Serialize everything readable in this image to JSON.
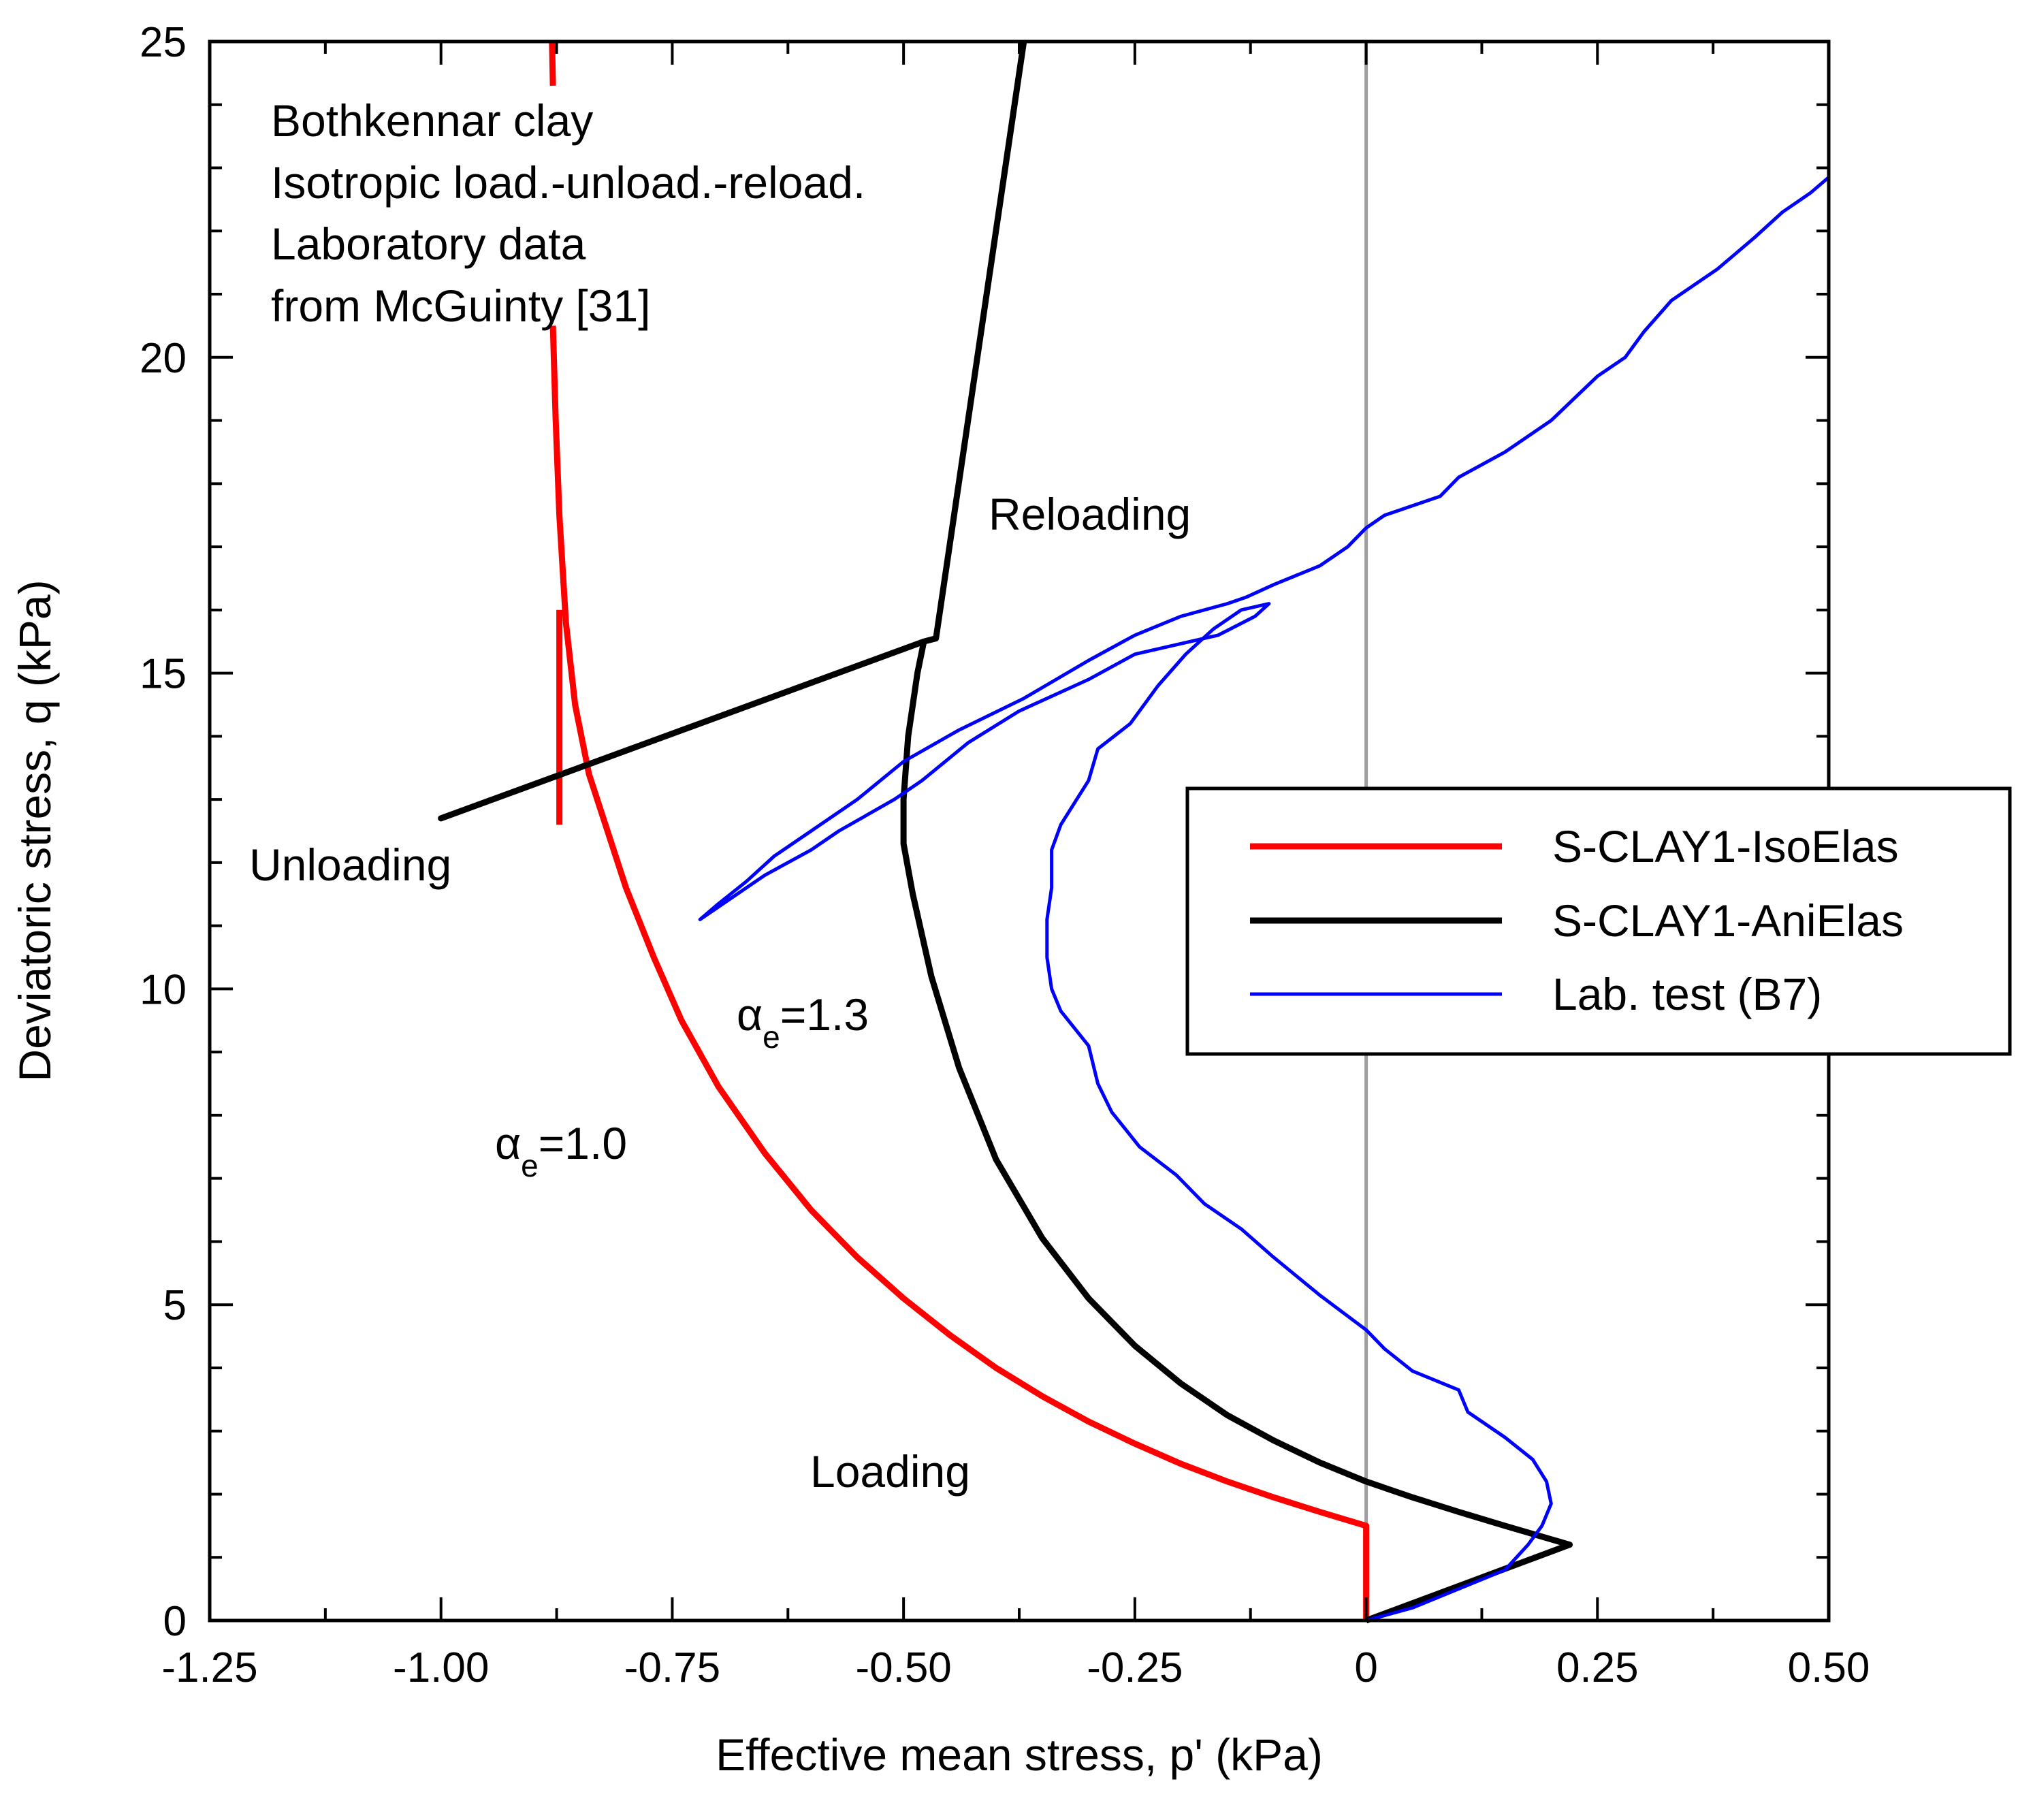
{
  "colors": {
    "red": "#ff0000",
    "black": "#000000",
    "blue": "#0000ff",
    "zero_line": "#a0a0a0"
  },
  "chart_data": {
    "type": "line",
    "xlabel": "Effective mean stress, p' (kPa)",
    "ylabel": "Deviatoric stress, q (kPa)",
    "xlim": [
      -1.25,
      0.5
    ],
    "ylim": [
      0,
      25
    ],
    "x_ticks": [
      -1.25,
      -1.0,
      -0.75,
      -0.5,
      -0.25,
      0,
      0.25,
      0.5
    ],
    "x_tick_labels": [
      "-1.25",
      "-1.00",
      "-0.75",
      "-0.50",
      "-0.25",
      "0",
      "0.25",
      "0.50"
    ],
    "y_ticks": [
      0,
      5,
      10,
      15,
      20,
      25
    ],
    "y_tick_labels": [
      "0",
      "5",
      "10",
      "15",
      "20",
      "25"
    ],
    "info_lines": [
      "Bothkennar clay",
      "Isotropic load.-unload.-reload.",
      "Laboratory data",
      "from McGuinty [31]"
    ],
    "annotations": {
      "unloading": "Unloading",
      "reloading": "Reloading",
      "loading": "Loading",
      "alpha_symbol": "α",
      "alpha_sub": "e",
      "alpha_red_value": "=1.0",
      "alpha_black_value": "=1.3"
    },
    "legend": {
      "position": "middle-right",
      "entries": [
        "S-CLAY1-IsoElas",
        "S-CLAY1-AniElas",
        "Lab. test (B7)"
      ]
    },
    "series": [
      {
        "name": "S-CLAY1-IsoElas",
        "color": "red",
        "points": [
          [
            0,
            0
          ],
          [
            0,
            1.5
          ],
          [
            -0.05,
            1.72
          ],
          [
            -0.1,
            1.95
          ],
          [
            -0.15,
            2.2
          ],
          [
            -0.2,
            2.48
          ],
          [
            -0.25,
            2.8
          ],
          [
            -0.3,
            3.15
          ],
          [
            -0.35,
            3.55
          ],
          [
            -0.4,
            4.0
          ],
          [
            -0.45,
            4.52
          ],
          [
            -0.5,
            5.1
          ],
          [
            -0.55,
            5.75
          ],
          [
            -0.6,
            6.5
          ],
          [
            -0.65,
            7.4
          ],
          [
            -0.7,
            8.45
          ],
          [
            -0.74,
            9.5
          ],
          [
            -0.77,
            10.5
          ],
          [
            -0.8,
            11.6
          ],
          [
            -0.82,
            12.5
          ],
          [
            -0.84,
            13.4
          ],
          [
            -0.855,
            14.5
          ],
          [
            -0.865,
            15.8
          ],
          [
            -0.872,
            17.5
          ],
          [
            -0.876,
            19.0
          ],
          [
            -0.879,
            20.5
          ]
        ],
        "extra_segments": [
          [
            [
              -0.879,
              24.3
            ],
            [
              -0.88,
              25.0
            ]
          ],
          [
            [
              -0.872,
              12.6
            ],
            [
              -0.872,
              16.0
            ]
          ]
        ]
      },
      {
        "name": "S-CLAY1-AniElas",
        "color": "black",
        "points": [
          [
            0,
            0
          ],
          [
            0.22,
            1.2
          ],
          [
            0.15,
            1.5
          ],
          [
            0.1,
            1.72
          ],
          [
            0.05,
            1.95
          ],
          [
            0,
            2.2
          ],
          [
            -0.05,
            2.5
          ],
          [
            -0.1,
            2.85
          ],
          [
            -0.15,
            3.25
          ],
          [
            -0.2,
            3.75
          ],
          [
            -0.25,
            4.35
          ],
          [
            -0.3,
            5.1
          ],
          [
            -0.35,
            6.05
          ],
          [
            -0.4,
            7.3
          ],
          [
            -0.44,
            8.75
          ],
          [
            -0.47,
            10.2
          ],
          [
            -0.49,
            11.5
          ],
          [
            -0.5,
            12.3
          ],
          [
            -0.5,
            13.0
          ],
          [
            -0.495,
            14.0
          ],
          [
            -0.485,
            15.0
          ],
          [
            -0.478,
            15.5
          ],
          [
            -1.0,
            12.7
          ],
          [
            -0.478,
            15.5
          ],
          [
            -0.465,
            15.55
          ],
          [
            -0.37,
            25.0
          ]
        ]
      },
      {
        "name": "Lab. test (B7)",
        "color": "blue",
        "points": [
          [
            0,
            0
          ],
          [
            0.05,
            0.2
          ],
          [
            0.1,
            0.5
          ],
          [
            0.15,
            0.8
          ],
          [
            0.175,
            1.2
          ],
          [
            0.19,
            1.5
          ],
          [
            0.2,
            1.85
          ],
          [
            0.195,
            2.2
          ],
          [
            0.18,
            2.55
          ],
          [
            0.15,
            2.9
          ],
          [
            0.11,
            3.3
          ],
          [
            0.1,
            3.65
          ],
          [
            0.05,
            3.95
          ],
          [
            0.02,
            4.3
          ],
          [
            0,
            4.6
          ],
          [
            -0.05,
            5.15
          ],
          [
            -0.1,
            5.75
          ],
          [
            -0.135,
            6.2
          ],
          [
            -0.175,
            6.6
          ],
          [
            -0.205,
            7.05
          ],
          [
            -0.245,
            7.5
          ],
          [
            -0.275,
            8.05
          ],
          [
            -0.29,
            8.5
          ],
          [
            -0.3,
            9.1
          ],
          [
            -0.33,
            9.65
          ],
          [
            -0.34,
            10.0
          ],
          [
            -0.345,
            10.5
          ],
          [
            -0.345,
            11.1
          ],
          [
            -0.34,
            11.6
          ],
          [
            -0.34,
            12.2
          ],
          [
            -0.33,
            12.6
          ],
          [
            -0.3,
            13.3
          ],
          [
            -0.29,
            13.8
          ],
          [
            -0.255,
            14.2
          ],
          [
            -0.225,
            14.8
          ],
          [
            -0.195,
            15.3
          ],
          [
            -0.165,
            15.7
          ],
          [
            -0.135,
            16.0
          ],
          [
            -0.105,
            16.1
          ],
          [
            -0.12,
            15.9
          ],
          [
            -0.16,
            15.6
          ],
          [
            -0.25,
            15.3
          ],
          [
            -0.3,
            14.9
          ],
          [
            -0.375,
            14.4
          ],
          [
            -0.43,
            13.9
          ],
          [
            -0.48,
            13.3
          ],
          [
            -0.51,
            13.0
          ],
          [
            -0.57,
            12.5
          ],
          [
            -0.6,
            12.2
          ],
          [
            -0.65,
            11.8
          ],
          [
            -0.69,
            11.4
          ],
          [
            -0.72,
            11.1
          ],
          [
            -0.7,
            11.35
          ],
          [
            -0.67,
            11.7
          ],
          [
            -0.64,
            12.1
          ],
          [
            -0.6,
            12.5
          ],
          [
            -0.55,
            13.0
          ],
          [
            -0.5,
            13.6
          ],
          [
            -0.44,
            14.1
          ],
          [
            -0.37,
            14.6
          ],
          [
            -0.3,
            15.2
          ],
          [
            -0.25,
            15.6
          ],
          [
            -0.2,
            15.9
          ],
          [
            -0.15,
            16.1
          ],
          [
            -0.13,
            16.2
          ],
          [
            -0.1,
            16.4
          ],
          [
            -0.05,
            16.7
          ],
          [
            -0.02,
            17.0
          ],
          [
            0,
            17.3
          ],
          [
            0.02,
            17.5
          ],
          [
            0.08,
            17.8
          ],
          [
            0.1,
            18.1
          ],
          [
            0.15,
            18.5
          ],
          [
            0.2,
            19.0
          ],
          [
            0.25,
            19.7
          ],
          [
            0.28,
            20.0
          ],
          [
            0.3,
            20.4
          ],
          [
            0.33,
            20.9
          ],
          [
            0.38,
            21.4
          ],
          [
            0.42,
            21.9
          ],
          [
            0.45,
            22.3
          ],
          [
            0.48,
            22.6
          ],
          [
            0.5,
            22.85
          ]
        ]
      }
    ]
  }
}
